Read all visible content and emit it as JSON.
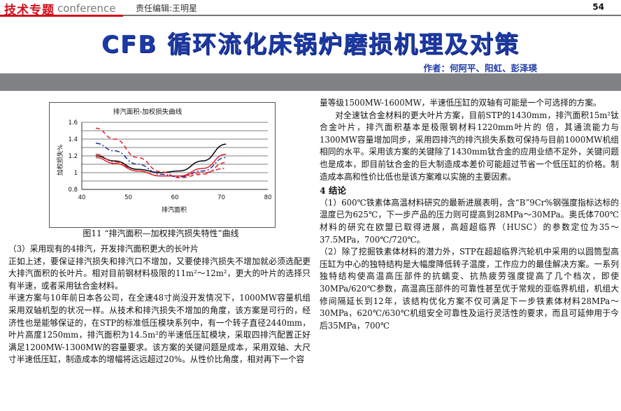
{
  "header": {
    "section_cn": "技术专题",
    "section_en": "conference",
    "editor": "责任编辑:王明星",
    "page_number": "54"
  },
  "article": {
    "title": "CFB 循环流化床锅炉磨损机理及对策",
    "authors": "作者：何阿平、阳虹、彭泽瑛"
  },
  "figure": {
    "caption": "图11 “排汽面积—加权排汽损失特性”曲线"
  },
  "chart_data": {
    "type": "line",
    "title": "排汽面积-加权损失曲线",
    "xlabel": "排汽面积",
    "ylabel": "加权损失%",
    "xlim": [
      40,
      80
    ],
    "ylim": [
      0.8,
      1.6
    ],
    "xticks": [
      "40",
      "50",
      "60",
      "70",
      "80"
    ],
    "yticks": [
      "0.8",
      "1",
      "1.2",
      "1.4",
      "1.6"
    ],
    "grid": true,
    "series": [
      {
        "style": "solid",
        "color": "#000000",
        "x": [
          43,
          47,
          52,
          57,
          61,
          66,
          71
        ],
        "y": [
          1.2,
          1.14,
          1.04,
          1.0,
          1.02,
          1.14,
          1.34
        ]
      },
      {
        "style": "solid",
        "color": "#e0202a",
        "x": [
          43,
          47,
          52,
          57,
          61,
          66,
          71
        ],
        "y": [
          1.18,
          1.11,
          1.02,
          0.96,
          0.96,
          1.05,
          1.22
        ]
      },
      {
        "style": "dashed",
        "color": "#e0202a",
        "x": [
          43,
          47,
          52,
          57,
          61,
          66,
          71
        ],
        "y": [
          1.53,
          1.4,
          1.18,
          1.01,
          0.94,
          0.98,
          1.12
        ]
      },
      {
        "style": "dashdot",
        "color": "#1a2c9a",
        "x": [
          43,
          47,
          52,
          57,
          61,
          66,
          71
        ],
        "y": [
          1.35,
          1.26,
          1.1,
          0.98,
          0.95,
          1.02,
          1.18
        ]
      },
      {
        "style": "dashdot",
        "color": "#e0202a",
        "x": [
          43,
          47,
          52,
          57,
          61,
          66,
          71
        ],
        "y": [
          1.22,
          1.13,
          1.02,
          0.96,
          0.96,
          1.0,
          1.05
        ]
      }
    ]
  },
  "left_column": [
    "（3）采用现有的4排汽，开发排汽面积更大的长叶片",
    "正如上述，要保证排汽损失和排汽口不增加，又要使排汽损失不增加就必须选配更大排汽面积的长叶片。相对目前钢材料极限的11m²～12m²，更大的叶片的选择只有半速，或者采用钛合金材料。",
    "半速方案与10年前日本各公司，在全速48寸尚没开发情况下，1000MW容量机组采用双轴机型的状况一样。从技术和排汽损失不增加的角度，该方案是可行的，经济性也是能够保证的，在STP的标准低压模块系列中，有一个转子直径2440mm，叶片高度1250mm，排汽面积为14.5m²的半速低压缸模块，采取四排汽配置正好满足1200MW-1300MW的容量要求。该方案的关键问题是成本，采用双轴、大尺寸半速低压缸，制造成本的增幅将远远超过20%。从性价比角度，相对再下一个容"
  ],
  "right_column": {
    "p_continue": "量等级1500MW-1600MW，半速低压缸的双轴有可能是一个可选择的方案。",
    "p_titanium": "对全速钛合金材料的更大叶片方案，目前STP的1430mm，排汽面积15m²钛合金叶片，排汽面积基本是极限钢材料1220mm叶片的 倍，其通流能力与1300MW容量增加同步，采用四排汽的排汽损失系数可保持与目前1000MW机组相同的水平。采用该方案的关键除了1430mm钛合金的应用业绩不足外，关键问题也是成本，即目前钛合金的巨大制造成本差价可能超过节省一个低压缸的价格。制造成本高和性价比低也是该方案难以实施的主要因素。",
    "heading": "4 结论",
    "p_c1": "（1）600℃铁素体高温材料研究的最新进展表明，含“B”9Cr%钢强度指标达标的温度已为625℃，下一步产品的压力则可提高到28MPa～30MPa。奥氏体700℃材料的研究在欧盟已取得进展，高超超临界（HUSC）的参数定位为35～37.5MPa，700℃/720℃。",
    "p_c2": "（2）除了挖掘铁素体材料的潜力外，STP在超超临界汽轮机中采用的以圆筒型高压缸为中心的独特结构是大幅度降低转子温度，工作应力的最佳解决方案。一系列独特结构使高温高压部件的抗蠕变、抗热疲劳强度提高了几个档次，即使30MPa/620℃参数，高温高压部件的可靠性甚至优于常规的亚临界机组，机组大修间隔延长到12年，该结构优化方案不仅可满足下一步铁素体材料28MPa～30MPa，620℃/630℃机组安全可靠性及运行灵活性的要求，而且可延伸用于今后35MPa，700℃"
  }
}
